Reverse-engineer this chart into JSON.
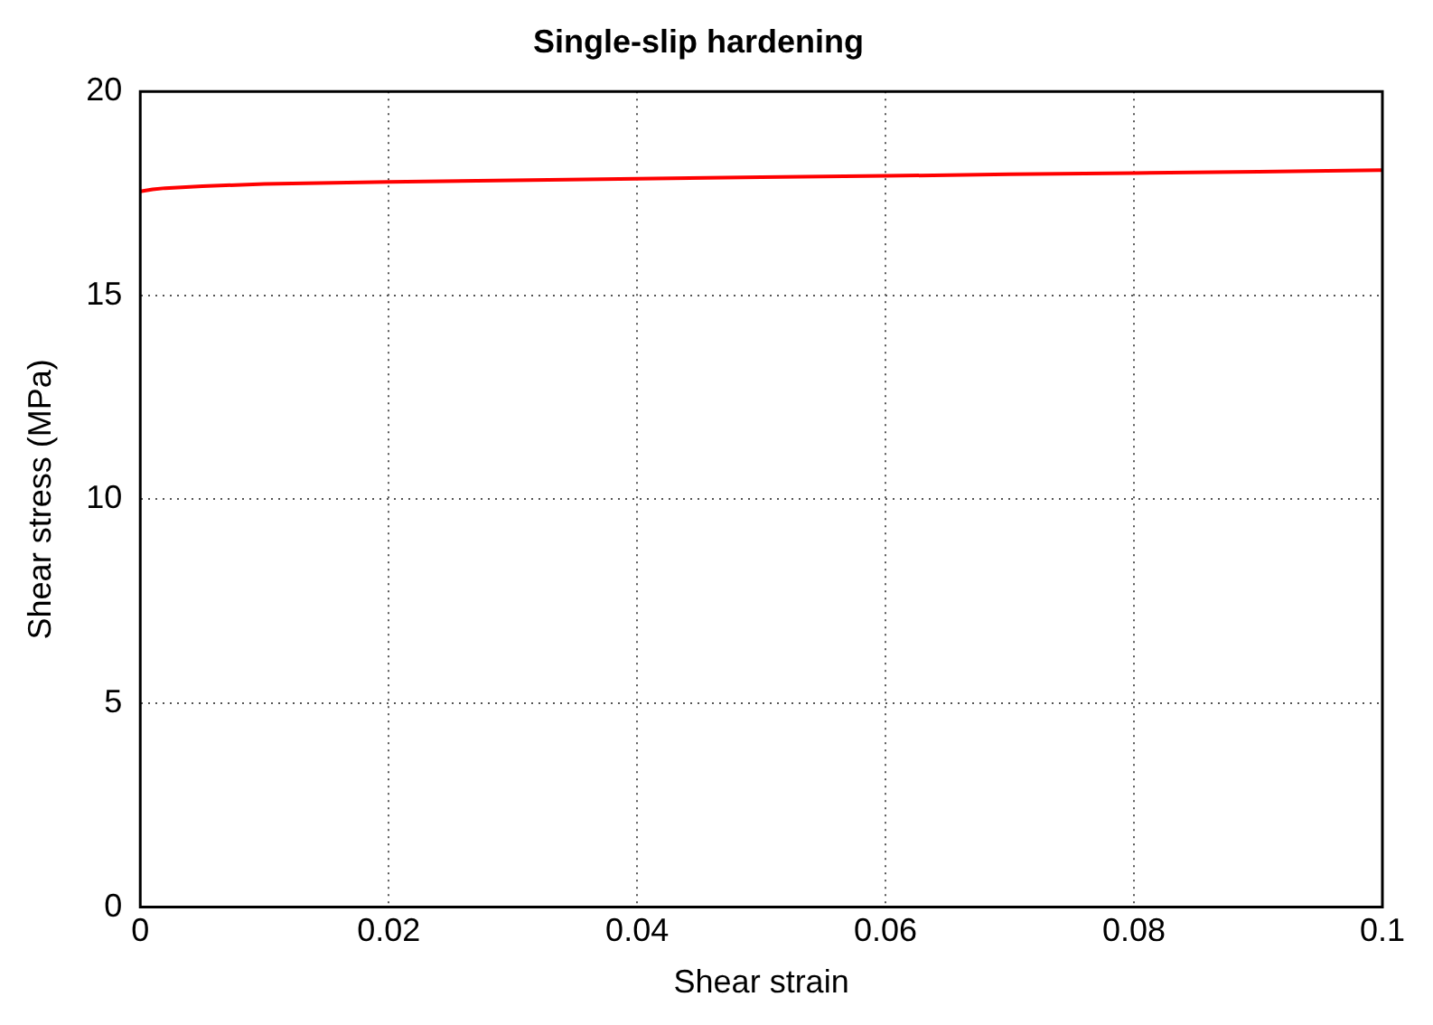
{
  "chart_data": {
    "type": "line",
    "title": "Single-slip hardening",
    "xlabel": "Shear strain",
    "ylabel": "Shear stress (MPa)",
    "x": [
      0,
      0.001,
      0.002,
      0.005,
      0.01,
      0.02,
      0.03,
      0.04,
      0.05,
      0.06,
      0.07,
      0.08,
      0.09,
      0.1
    ],
    "series": [
      {
        "color": "#ff0000",
        "values": [
          17.55,
          17.6,
          17.63,
          17.68,
          17.73,
          17.78,
          17.82,
          17.86,
          17.9,
          17.93,
          17.97,
          18.0,
          18.03,
          18.07
        ]
      }
    ],
    "xlim": [
      0,
      0.1
    ],
    "xticks": [
      0,
      0.02,
      0.04,
      0.06,
      0.08,
      0.1
    ],
    "ylim": [
      0,
      20
    ],
    "yticks": [
      0,
      5,
      10,
      15,
      20
    ],
    "grid": true,
    "legend": false,
    "marker": "none",
    "line_style": "solid"
  }
}
